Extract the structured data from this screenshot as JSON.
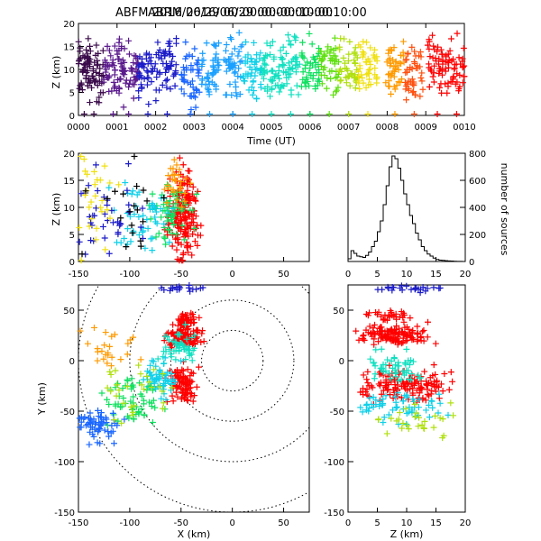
{
  "header": {
    "title_overlap_a": "ABFM 2016/06/29 00:00:00-00:10:00",
    "title_overlap_b": "ABRM 2016/06/29 00:00:00-00:10:00"
  },
  "palette": [
    "#000000",
    "#3a0a4a",
    "#5a1a8c",
    "#1c1cc8",
    "#1a66ff",
    "#1aa0ff",
    "#10d0e8",
    "#10e0c0",
    "#10e060",
    "#60e010",
    "#b0e010",
    "#f0e010",
    "#ff9a00",
    "#ff5010",
    "#ff0000"
  ],
  "chart_data": [
    {
      "type": "scatter",
      "name": "time-height",
      "xlabel": "Time (UT)",
      "ylabel": "Z (km)",
      "xticks": [
        "0000",
        "0001",
        "0002",
        "0003",
        "0004",
        "0005",
        "0006",
        "0007",
        "0008",
        "0009",
        "0010"
      ],
      "xlim": [
        0,
        10
      ],
      "ylim": [
        0,
        20
      ],
      "yticks": [
        0,
        5,
        10,
        15,
        20
      ],
      "clusters": [
        {
          "t": 0.15,
          "z": 10,
          "c": 1
        },
        {
          "t": 0.4,
          "z": 9,
          "c": 1
        },
        {
          "t": 0.9,
          "z": 11,
          "c": 2
        },
        {
          "t": 1.3,
          "z": 9,
          "c": 2
        },
        {
          "t": 1.8,
          "z": 10,
          "c": 3
        },
        {
          "t": 2.3,
          "z": 11,
          "c": 3
        },
        {
          "t": 2.9,
          "z": 9,
          "c": 4
        },
        {
          "t": 3.4,
          "z": 10,
          "c": 5
        },
        {
          "t": 4.0,
          "z": 11,
          "c": 5
        },
        {
          "t": 4.5,
          "z": 10,
          "c": 6
        },
        {
          "t": 5.0,
          "z": 9,
          "c": 7
        },
        {
          "t": 5.5,
          "z": 11,
          "c": 7
        },
        {
          "t": 6.0,
          "z": 10,
          "c": 8
        },
        {
          "t": 6.5,
          "z": 10,
          "c": 9
        },
        {
          "t": 7.0,
          "z": 10,
          "c": 10
        },
        {
          "t": 7.5,
          "z": 10,
          "c": 11
        },
        {
          "t": 8.2,
          "z": 10,
          "c": 12
        },
        {
          "t": 8.7,
          "z": 9,
          "c": 13
        },
        {
          "t": 9.3,
          "z": 11,
          "c": 14
        },
        {
          "t": 9.8,
          "z": 10,
          "c": 14
        }
      ]
    },
    {
      "type": "scatter",
      "name": "x-height",
      "ylabel": "Z (km)",
      "xlim": [
        -150,
        75
      ],
      "ylim": [
        0,
        20
      ],
      "xticks": [
        -150,
        -100,
        -50,
        0,
        50
      ],
      "yticks": [
        0,
        5,
        10,
        15,
        20
      ],
      "clusters": [
        {
          "x": -48,
          "z": 9,
          "c": 14,
          "n": 180,
          "sx": 7,
          "sz": 4
        },
        {
          "x": -60,
          "z": 9,
          "c": 8,
          "n": 60,
          "sx": 10,
          "sz": 3
        },
        {
          "x": -85,
          "z": 8,
          "c": 6,
          "n": 50,
          "sx": 14,
          "sz": 3
        },
        {
          "x": -120,
          "z": 9,
          "c": 3,
          "n": 40,
          "sx": 18,
          "sz": 4
        },
        {
          "x": -135,
          "z": 11,
          "c": 11,
          "n": 30,
          "sx": 10,
          "sz": 5
        },
        {
          "x": -55,
          "z": 14,
          "c": 12,
          "n": 30,
          "sx": 6,
          "sz": 2
        },
        {
          "x": -100,
          "z": 10,
          "c": 0,
          "n": 20,
          "sx": 20,
          "sz": 4
        }
      ]
    },
    {
      "type": "bar",
      "name": "height-histogram",
      "ylabel": "number of sources",
      "xlim": [
        0,
        20
      ],
      "ylim": [
        0,
        800
      ],
      "xticks": [
        0,
        5,
        10,
        15,
        20
      ],
      "yticks": [
        0,
        200,
        400,
        600,
        800
      ],
      "bin_width": 0.5,
      "values": [
        20,
        80,
        60,
        40,
        35,
        30,
        45,
        70,
        110,
        150,
        220,
        300,
        420,
        560,
        700,
        780,
        760,
        690,
        600,
        500,
        420,
        340,
        280,
        210,
        160,
        110,
        80,
        55,
        40,
        25,
        15,
        10,
        8,
        6,
        4,
        3,
        2,
        1,
        1,
        0
      ]
    },
    {
      "type": "scatter",
      "name": "plan-view",
      "xlabel": "X (km)",
      "ylabel": "Y (km)",
      "xlim": [
        -150,
        75
      ],
      "ylim": [
        -150,
        75
      ],
      "xticks": [
        -150,
        -100,
        -50,
        0,
        50
      ],
      "yticks": [
        -150,
        -100,
        -50,
        0,
        50
      ],
      "range_rings_km": [
        30,
        60,
        100,
        150
      ],
      "clusters": [
        {
          "x": -48,
          "y": 25,
          "c": 14,
          "n": 120,
          "sx": 8,
          "sy": 5
        },
        {
          "x": -45,
          "y": 42,
          "c": 14,
          "n": 40,
          "sx": 5,
          "sy": 3
        },
        {
          "x": -48,
          "y": -25,
          "c": 14,
          "n": 90,
          "sx": 7,
          "sy": 10
        },
        {
          "x": -55,
          "y": 15,
          "c": 7,
          "n": 50,
          "sx": 8,
          "sy": 8
        },
        {
          "x": -70,
          "y": -20,
          "c": 6,
          "n": 60,
          "sx": 8,
          "sy": 10
        },
        {
          "x": -95,
          "y": -40,
          "c": 8,
          "n": 60,
          "sx": 14,
          "sy": 10
        },
        {
          "x": -130,
          "y": -65,
          "c": 4,
          "n": 60,
          "sx": 10,
          "sy": 8
        },
        {
          "x": -120,
          "y": 10,
          "c": 12,
          "n": 25,
          "sx": 15,
          "sy": 12
        },
        {
          "x": -45,
          "y": 72,
          "c": 3,
          "n": 20,
          "sx": 10,
          "sy": 2
        },
        {
          "x": -100,
          "y": -30,
          "c": 10,
          "n": 30,
          "sx": 20,
          "sy": 15
        }
      ]
    },
    {
      "type": "scatter",
      "name": "height-y",
      "xlabel": "Z (km)",
      "xlim": [
        0,
        20
      ],
      "ylim": [
        -150,
        75
      ],
      "xticks": [
        0,
        5,
        10,
        15,
        20
      ],
      "yticks": [
        -150,
        -100,
        -50,
        0,
        50
      ],
      "clusters": [
        {
          "z": 8,
          "y": 26,
          "c": 14,
          "n": 120,
          "sz": 3,
          "sy": 5
        },
        {
          "z": 10,
          "y": -25,
          "c": 14,
          "n": 140,
          "sz": 4,
          "sy": 8
        },
        {
          "z": 8,
          "y": -5,
          "c": 7,
          "n": 50,
          "sz": 2,
          "sy": 10
        },
        {
          "z": 9,
          "y": -45,
          "c": 6,
          "n": 60,
          "sz": 4,
          "sy": 8
        },
        {
          "z": 10,
          "y": 72,
          "c": 3,
          "n": 25,
          "sz": 3,
          "sy": 2
        },
        {
          "z": 7,
          "y": 45,
          "c": 14,
          "n": 30,
          "sz": 2,
          "sy": 3
        },
        {
          "z": 12,
          "y": -60,
          "c": 10,
          "n": 30,
          "sz": 4,
          "sy": 10
        }
      ]
    }
  ]
}
